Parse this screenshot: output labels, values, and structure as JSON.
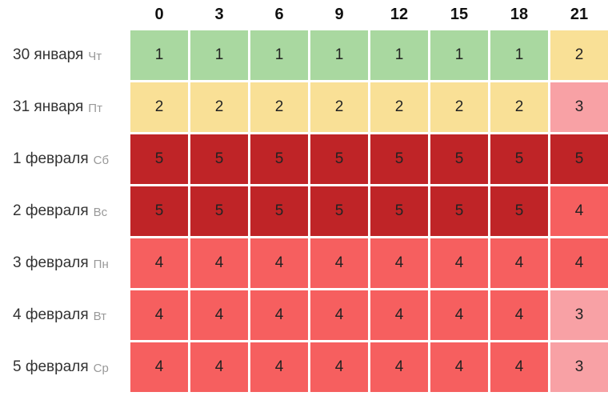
{
  "chart_data": {
    "type": "heatmap",
    "title": "",
    "x_label": "",
    "x": [
      "0",
      "3",
      "6",
      "9",
      "12",
      "15",
      "18",
      "21"
    ],
    "rows": [
      {
        "date": "30 января",
        "weekday": "Чт",
        "values": [
          1,
          1,
          1,
          1,
          1,
          1,
          1,
          2
        ]
      },
      {
        "date": "31 января",
        "weekday": "Пт",
        "values": [
          2,
          2,
          2,
          2,
          2,
          2,
          2,
          3
        ]
      },
      {
        "date": "1 февраля",
        "weekday": "Сб",
        "values": [
          5,
          5,
          5,
          5,
          5,
          5,
          5,
          5
        ]
      },
      {
        "date": "2 февраля",
        "weekday": "Вс",
        "values": [
          5,
          5,
          5,
          5,
          5,
          5,
          5,
          4
        ]
      },
      {
        "date": "3 февраля",
        "weekday": "Пн",
        "values": [
          4,
          4,
          4,
          4,
          4,
          4,
          4,
          4
        ]
      },
      {
        "date": "4 февраля",
        "weekday": "Вт",
        "values": [
          4,
          4,
          4,
          4,
          4,
          4,
          4,
          3
        ]
      },
      {
        "date": "5 февраля",
        "weekday": "Ср",
        "values": [
          4,
          4,
          4,
          4,
          4,
          4,
          4,
          3
        ]
      }
    ],
    "value_range": [
      1,
      5
    ],
    "color_scale": {
      "1": "#a9d8a0",
      "2": "#f9e096",
      "3": "#f8a1a5",
      "4": "#f65f5f",
      "5": "#bf2427"
    },
    "grid_gap_color": "#ffffff",
    "legend_position": "none"
  },
  "colors": {
    "header_text": "#111111",
    "label_text": "#333333",
    "weekday_text": "#999999",
    "cell_text": "#222222",
    "background": "#ffffff"
  }
}
